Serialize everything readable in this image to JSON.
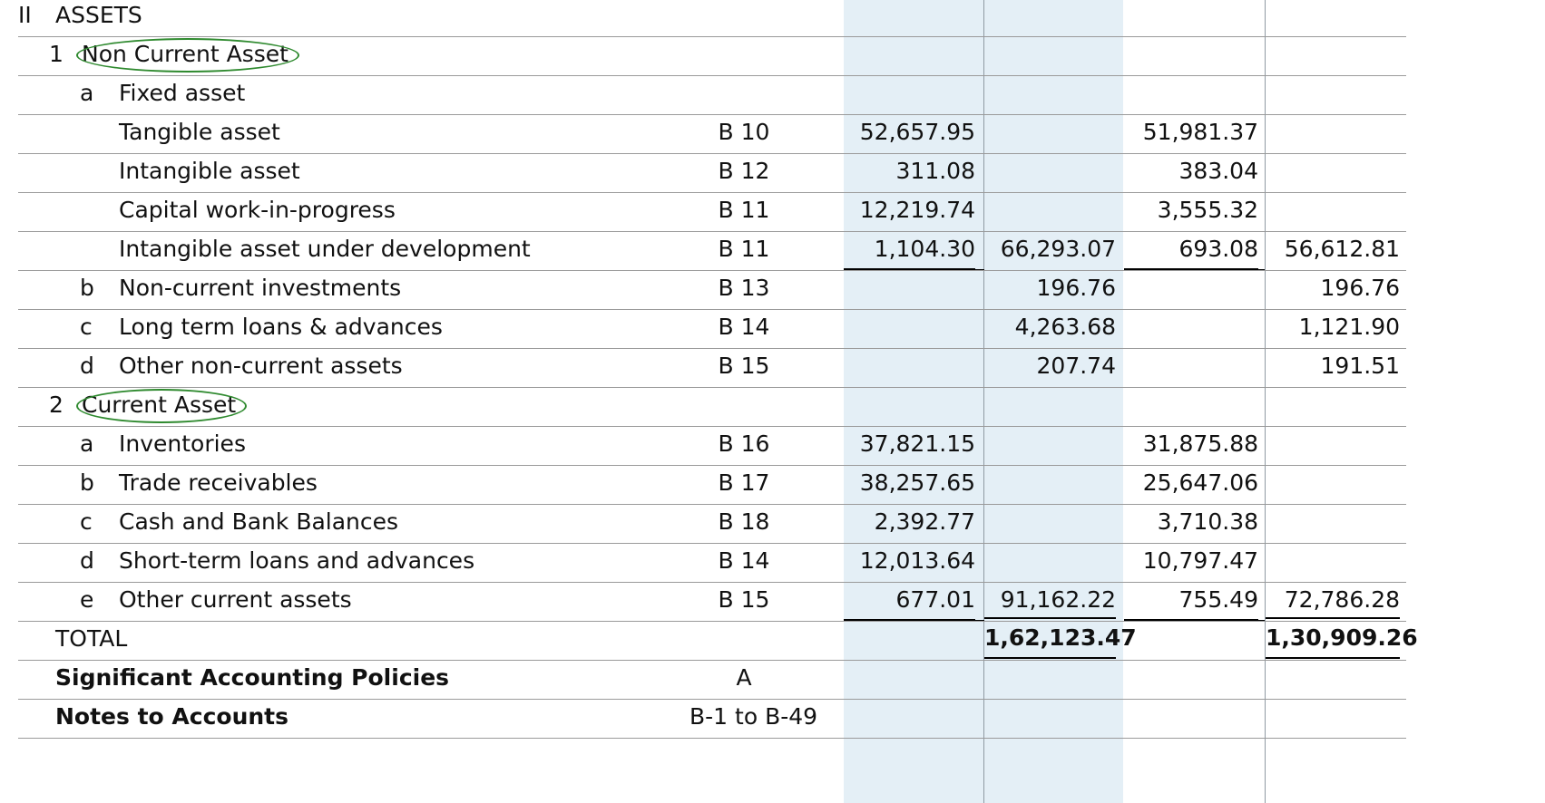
{
  "section": {
    "roman": "II",
    "title": "ASSETS"
  },
  "rows": [
    {
      "type": "section"
    },
    {
      "type": "group",
      "num": "1",
      "label": "Non Current Asset",
      "circled": true
    },
    {
      "type": "sub",
      "letter": "a",
      "label": "Fixed asset"
    },
    {
      "type": "item",
      "label": "Tangible asset",
      "note": "B 10",
      "c1": "52,657.95",
      "c3": "51,981.37"
    },
    {
      "type": "item",
      "label": "Intangible asset",
      "note": "B 12",
      "c1": "311.08",
      "c3": "383.04"
    },
    {
      "type": "item",
      "label": "Capital work-in-progress",
      "note": "B 11",
      "c1": "12,219.74",
      "c3": "3,555.32"
    },
    {
      "type": "item",
      "label": "Intangible asset under development",
      "note": "B 11",
      "c1": "1,104.30",
      "c2": "66,293.07",
      "c3": "693.08",
      "c4": "56,612.81",
      "ul": true
    },
    {
      "type": "sub",
      "letter": "b",
      "label": "Non-current investments",
      "note": "B 13",
      "c2": "196.76",
      "c4": "196.76"
    },
    {
      "type": "sub",
      "letter": "c",
      "label": "Long term loans & advances",
      "note": "B 14",
      "c2": "4,263.68",
      "c4": "1,121.90"
    },
    {
      "type": "sub",
      "letter": "d",
      "label": "Other non-current assets",
      "note": "B 15",
      "c2": "207.74",
      "c4": "191.51"
    },
    {
      "type": "group",
      "num": "2",
      "label": "Current Asset",
      "circled": true
    },
    {
      "type": "sub",
      "letter": "a",
      "label": "Inventories",
      "note": "B 16",
      "c1": "37,821.15",
      "c3": "31,875.88"
    },
    {
      "type": "sub",
      "letter": "b",
      "label": "Trade receivables",
      "note": "B 17",
      "c1": "38,257.65",
      "c3": "25,647.06"
    },
    {
      "type": "sub",
      "letter": "c",
      "label": "Cash and Bank Balances",
      "note": "B 18",
      "c1": "2,392.77",
      "c3": "3,710.38"
    },
    {
      "type": "sub",
      "letter": "d",
      "label": "Short-term loans and advances",
      "note": "B 14",
      "c1": "12,013.64",
      "c3": "10,797.47"
    },
    {
      "type": "sub",
      "letter": "e",
      "label": "Other current assets",
      "note": "B 15",
      "c1": "677.01",
      "c2": "91,162.22",
      "c3": "755.49",
      "c4": "72,786.28",
      "ul": true
    },
    {
      "type": "total",
      "label": "TOTAL",
      "c2": "1,62,123.47",
      "c4": "1,30,909.26"
    },
    {
      "type": "footer",
      "label": "Significant Accounting Policies",
      "note": "A"
    },
    {
      "type": "footer",
      "label": "Notes to Accounts",
      "note": "B-1 to B-49"
    }
  ],
  "colors": {
    "shade": "#e4eff6",
    "circle": "#2f8a2f",
    "rule": "#9a9a9a"
  }
}
